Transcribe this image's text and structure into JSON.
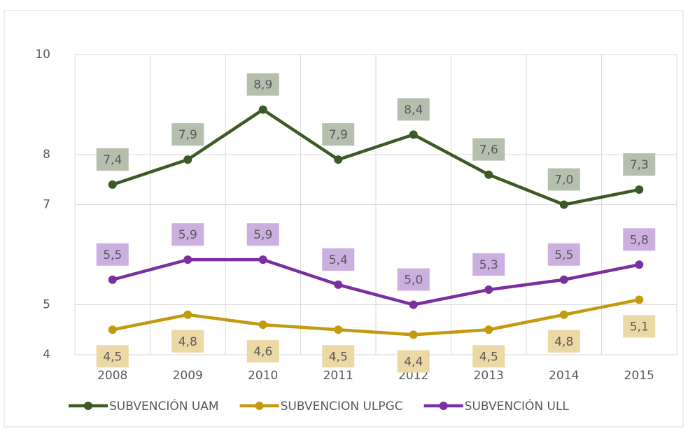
{
  "chart_data": {
    "type": "line",
    "categories": [
      "2008",
      "2009",
      "2010",
      "2011",
      "2012",
      "2013",
      "2014",
      "2015"
    ],
    "series": [
      {
        "name": "SUBVENCIÓN UAM",
        "color": "#3b5a24",
        "label_color": "#b4bfad",
        "label_position": "above",
        "values": [
          7.4,
          7.9,
          8.9,
          7.9,
          8.4,
          7.6,
          7.0,
          7.3
        ],
        "value_labels": [
          "7,4",
          "7,9",
          "8,9",
          "7,9",
          "8,4",
          "7,6",
          "7,0",
          "7,3"
        ]
      },
      {
        "name": "SUBVENCION ULPGC",
        "color": "#c39a0c",
        "label_color": "#ecd8a5",
        "label_position": "below",
        "values": [
          4.5,
          4.8,
          4.6,
          4.5,
          4.4,
          4.5,
          4.8,
          5.1
        ],
        "value_labels": [
          "4,5",
          "4,8",
          "4,6",
          "4,5",
          "4,4",
          "4,5",
          "4,8",
          "5,1"
        ]
      },
      {
        "name": "SUBVENCIÓN ULL",
        "color": "#7a2fa1",
        "label_color": "#cbafde",
        "label_position": "above",
        "values": [
          5.5,
          5.9,
          5.9,
          5.4,
          5.0,
          5.3,
          5.5,
          5.8
        ],
        "value_labels": [
          "5,5",
          "5,9",
          "5,9",
          "5,4",
          "5,0",
          "5,3",
          "5,5",
          "5,8"
        ]
      }
    ],
    "ylim": [
      4,
      10
    ],
    "yticks": [
      4,
      5,
      7,
      8,
      10
    ],
    "grid": true,
    "legend": "bottom"
  }
}
